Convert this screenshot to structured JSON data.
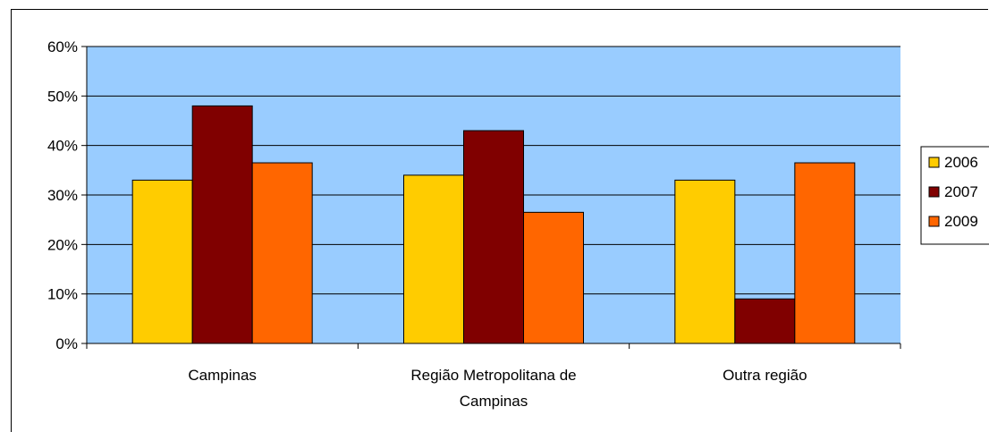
{
  "chart_data": {
    "type": "bar",
    "categories": [
      [
        "Campinas"
      ],
      [
        "Região Metropolitana de",
        "Campinas"
      ],
      [
        "Outra região"
      ]
    ],
    "series": [
      {
        "name": "2006",
        "color": "#FFCC00",
        "values": [
          33,
          34,
          33
        ]
      },
      {
        "name": "2007",
        "color": "#800000",
        "values": [
          48,
          43,
          9
        ]
      },
      {
        "name": "2009",
        "color": "#FF6600",
        "values": [
          36.5,
          26.5,
          36.5
        ]
      }
    ],
    "ylim": [
      0,
      60
    ],
    "yticks": [
      0,
      10,
      20,
      30,
      40,
      50,
      60
    ],
    "ytick_labels": [
      "0%",
      "10%",
      "20%",
      "30%",
      "40%",
      "50%",
      "60%"
    ],
    "plot_background": "#99CCFF",
    "grid": true,
    "legend": "right"
  }
}
